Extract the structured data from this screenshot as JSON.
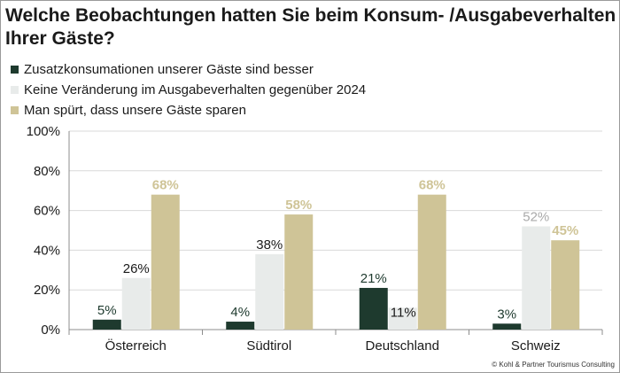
{
  "colors": {
    "series1": "#1e3a2e",
    "series2": "#e8ebea",
    "series3": "#cfc497",
    "label2": "#1a1a1a",
    "label3": "#cfc497",
    "label2_schweiz": "#a9a9a9"
  },
  "title": "Welche Beobachtungen hatten Sie beim Konsum- /Ausgabeverhalten Ihrer Gäste?",
  "copyright": "© Kohl & Partner Tourismus Consulting",
  "chart_data": {
    "type": "bar",
    "title": "Welche Beobachtungen hatten Sie beim Konsum- /Ausgabeverhalten Ihrer Gäste?",
    "categories": [
      "Österreich",
      "Südtirol",
      "Deutschland",
      "Schweiz"
    ],
    "series": [
      {
        "name": "Zusatzkonsumationen unserer Gäste sind besser",
        "values": [
          5,
          4,
          21,
          3
        ],
        "labels": [
          "5%",
          "4%",
          "21%",
          "3%"
        ]
      },
      {
        "name": "Keine Veränderung im Ausgabeverhalten gegenüber 2024",
        "values": [
          26,
          38,
          11,
          52
        ],
        "labels": [
          "26%",
          "38%",
          "11%",
          "52%"
        ]
      },
      {
        "name": "Man spürt, dass unsere Gäste sparen",
        "values": [
          68,
          58,
          68,
          45
        ],
        "labels": [
          "68%",
          "58%",
          "68%",
          "45%"
        ]
      }
    ],
    "yticks": [
      "0%",
      "20%",
      "40%",
      "60%",
      "80%",
      "100%"
    ],
    "ylim": [
      0,
      100
    ],
    "xlabel": "",
    "ylabel": "",
    "legend": "top-left"
  }
}
